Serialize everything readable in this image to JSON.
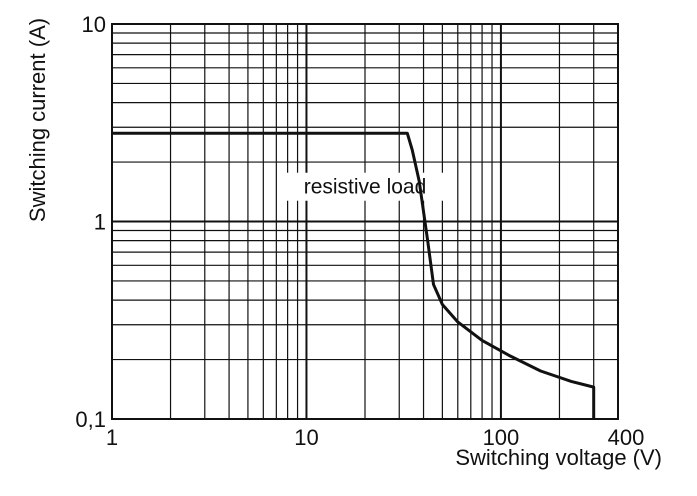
{
  "chart_data": {
    "type": "line",
    "title": "",
    "xlabel": "Switching voltage (V)",
    "ylabel": "Switching current (A)",
    "x_scale": "log",
    "y_scale": "log",
    "xlim": [
      1,
      400
    ],
    "ylim": [
      0.1,
      10
    ],
    "grid": true,
    "x_tick_labels": [
      {
        "value": 1,
        "label": "1"
      },
      {
        "value": 10,
        "label": "10"
      },
      {
        "value": 100,
        "label": "100"
      },
      {
        "value": 400,
        "label": "400"
      }
    ],
    "y_tick_labels": [
      {
        "value": 0.1,
        "label": "0,1"
      },
      {
        "value": 1,
        "label": "1"
      },
      {
        "value": 10,
        "label": "10"
      }
    ],
    "series": [
      {
        "color": "#111111",
        "x": [
          1,
          33,
          35,
          38,
          42,
          45,
          50,
          60,
          80,
          110,
          160,
          230,
          300,
          300
        ],
        "y": [
          2.8,
          2.8,
          2.3,
          1.6,
          0.8,
          0.48,
          0.38,
          0.31,
          0.25,
          0.21,
          0.175,
          0.155,
          0.145,
          0.1
        ]
      }
    ],
    "annotations": [
      {
        "text": "resistive load",
        "x": 20,
        "y": 1.5
      }
    ],
    "line_color": "#111111",
    "grid_color": "#111111"
  }
}
